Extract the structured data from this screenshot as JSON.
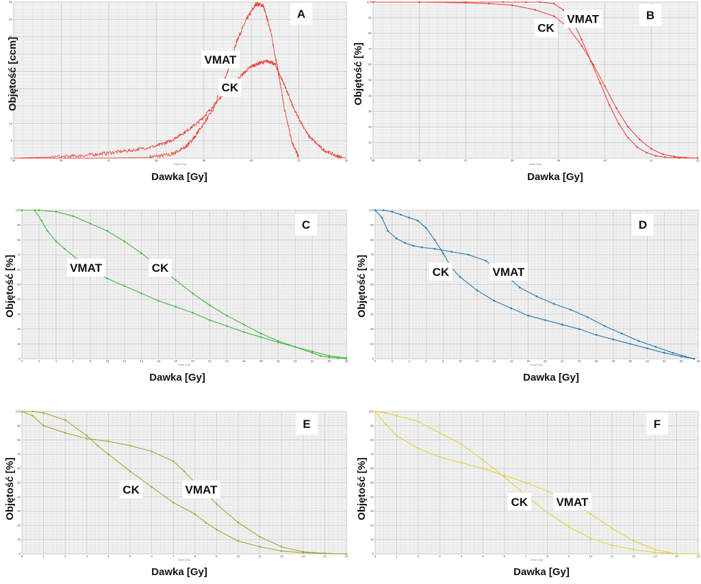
{
  "chart_data": [
    {
      "id": "A",
      "type": "line",
      "color": "#e8463c",
      "xlabel": "Dawka  [Gy]",
      "ylabel": "Objętość  [ccm]",
      "xlim": [
        35,
        42
      ],
      "ylim": [
        0,
        45
      ],
      "xticks": [
        "35",
        "36",
        "37",
        "38",
        "39",
        "40",
        "41",
        "42"
      ],
      "yticks": [
        "0",
        "5",
        "10",
        "15",
        "20",
        "25",
        "30",
        "35",
        "40",
        "45"
      ],
      "x_axis_caption": "Dose (Gy)",
      "series": [
        {
          "name": "VMAT",
          "noise": 0.6,
          "markers": false,
          "x": [
            35.0,
            36.5,
            37.0,
            37.8,
            38.3,
            38.6,
            38.8,
            39.2,
            39.5,
            39.7,
            39.9,
            40.1,
            40.25,
            40.4,
            40.55,
            40.7,
            40.85,
            41.0
          ],
          "y": [
            0,
            0,
            0,
            0.2,
            1,
            3,
            6,
            14,
            25,
            34,
            40,
            44.5,
            44,
            37,
            26,
            14,
            5,
            0
          ]
        },
        {
          "name": "CK",
          "noise": 0.5,
          "markers": false,
          "x": [
            35.0,
            36.0,
            36.5,
            37.0,
            37.5,
            38.0,
            38.3,
            38.6,
            38.9,
            39.2,
            39.5,
            39.8,
            40.0,
            40.2,
            40.35,
            40.5,
            40.7,
            40.9,
            41.2,
            41.5,
            41.8,
            42.0
          ],
          "y": [
            0,
            0.4,
            0.8,
            1.5,
            2.3,
            3.5,
            5,
            7.5,
            10.5,
            15,
            20,
            24,
            26.5,
            27.5,
            28,
            27,
            21,
            14,
            6.5,
            2.5,
            0.6,
            0
          ]
        }
      ],
      "labels": [
        {
          "text": "VMAT",
          "x": 39.35,
          "y": 28.4
        },
        {
          "text": "CK",
          "x": 39.55,
          "y": 20.4
        }
      ]
    },
    {
      "id": "B",
      "type": "line",
      "color": "#e8463c",
      "xlabel": "Dawka  [Gy]",
      "ylabel": "Objętość  [%]",
      "xlim": [
        35,
        42
      ],
      "ylim": [
        0,
        100
      ],
      "xticks": [
        "35",
        "36",
        "37",
        "38",
        "39",
        "40",
        "41",
        "42"
      ],
      "yticks": [
        "0",
        "10",
        "20",
        "30",
        "40",
        "50",
        "60",
        "70",
        "80",
        "90",
        "100"
      ],
      "x_axis_caption": "Dose (Gy)",
      "series": [
        {
          "name": "VMAT",
          "markers": true,
          "x": [
            35,
            36,
            37,
            37.8,
            38.3,
            38.6,
            38.9,
            39.1,
            39.3,
            39.5,
            39.7,
            39.9,
            40.1,
            40.3,
            40.5,
            40.7,
            40.9,
            41.1,
            41.3,
            41.6,
            42.0
          ],
          "y": [
            100,
            100,
            100,
            100,
            100,
            100,
            99,
            95,
            88,
            76,
            62,
            48,
            34,
            22,
            13,
            7,
            3.5,
            1.5,
            0.6,
            0.2,
            0
          ]
        },
        {
          "name": "CK",
          "markers": true,
          "x": [
            35,
            36,
            37,
            37.5,
            38,
            38.5,
            38.9,
            39.2,
            39.5,
            39.75,
            40,
            40.25,
            40.5,
            40.75,
            41,
            41.25,
            41.5,
            41.75,
            42
          ],
          "y": [
            100,
            100,
            99.5,
            99,
            98,
            95,
            91,
            84,
            72,
            60,
            46,
            32,
            20,
            12,
            6,
            2.5,
            1,
            0.3,
            0
          ]
        }
      ],
      "labels": [
        {
          "text": "CK",
          "x": 38.73,
          "y": 83.5
        },
        {
          "text": "VMAT",
          "x": 39.53,
          "y": 89.2
        }
      ]
    },
    {
      "id": "C",
      "type": "line",
      "color": "#3fb63c",
      "xlabel": "Dawka  [Gy]",
      "ylabel": "Objętość  [%]",
      "xlim": [
        0,
        38
      ],
      "ylim": [
        0,
        100
      ],
      "xticks": [
        "0",
        "2",
        "4",
        "6",
        "8",
        "10",
        "12",
        "14",
        "16",
        "18",
        "20",
        "22",
        "24",
        "26",
        "28",
        "30",
        "32",
        "34",
        "36",
        "38"
      ],
      "yticks": [
        "0",
        "10",
        "20",
        "30",
        "40",
        "50",
        "60",
        "70",
        "80",
        "90",
        "100"
      ],
      "x_axis_caption": "Dose (Gy)",
      "series": [
        {
          "name": "VMAT",
          "markers": true,
          "x": [
            0,
            1.5,
            2.3,
            3,
            4,
            5,
            6.5,
            8,
            10,
            12,
            14,
            16,
            18,
            20,
            22,
            24,
            26,
            28,
            30,
            32,
            34,
            36,
            38
          ],
          "y": [
            100,
            100,
            93,
            86,
            79,
            74,
            67,
            61,
            54,
            49,
            44,
            39,
            35,
            31,
            26,
            22,
            18,
            14.5,
            11,
            8,
            5,
            2,
            0.5
          ]
        },
        {
          "name": "CK",
          "markers": true,
          "x": [
            0,
            2,
            4,
            6,
            8,
            10,
            12,
            14,
            16,
            18,
            20,
            22,
            24,
            26,
            28,
            30,
            32,
            34,
            35,
            36,
            37,
            38
          ],
          "y": [
            100,
            100,
            99,
            96,
            91,
            86,
            79,
            71,
            62,
            53,
            44,
            36,
            29,
            23,
            17,
            12,
            8,
            4,
            2,
            1,
            0.5,
            0
          ]
        }
      ],
      "labels": [
        {
          "text": "VMAT",
          "x": 7.5,
          "y": 61.4
        },
        {
          "text": "CK",
          "x": 16.2,
          "y": 61.4
        }
      ]
    },
    {
      "id": "D",
      "type": "line",
      "color": "#1f78b4",
      "xlabel": "Dawka  [Gy]",
      "ylabel": "Objętość  [%]",
      "xlim": [
        0,
        38
      ],
      "ylim": [
        0,
        100
      ],
      "xticks": [
        "0",
        "2",
        "4",
        "6",
        "8",
        "10",
        "12",
        "14",
        "16",
        "18",
        "20",
        "22",
        "24",
        "26",
        "28",
        "30",
        "32",
        "34",
        "36",
        "38"
      ],
      "yticks": [
        "0",
        "10",
        "20",
        "30",
        "40",
        "50",
        "60",
        "70",
        "80",
        "90",
        "100"
      ],
      "x_axis_caption": "Dose (Gy)",
      "series": [
        {
          "name": "VMAT",
          "markers": true,
          "x": [
            0,
            0.8,
            1.5,
            2.5,
            3.5,
            4.5,
            5.5,
            7,
            9,
            11,
            13,
            15,
            17,
            19,
            21,
            23,
            25,
            27,
            29,
            31,
            33,
            35,
            36.5,
            37.5
          ],
          "y": [
            100,
            95,
            86,
            81,
            78,
            76,
            75,
            74,
            72,
            70,
            66,
            58,
            48,
            42,
            37,
            33,
            28,
            22,
            17,
            12,
            8,
            4,
            1.5,
            0
          ]
        },
        {
          "name": "CK",
          "markers": true,
          "x": [
            0,
            1,
            2,
            3,
            4,
            5,
            6,
            7,
            8,
            9,
            10,
            12,
            14,
            16,
            18,
            20,
            22,
            24,
            26,
            28,
            30,
            32,
            34,
            36,
            37.5
          ],
          "y": [
            100,
            100,
            99,
            97,
            95,
            93,
            88,
            80,
            71,
            61,
            55,
            46,
            39,
            34,
            29,
            26,
            23,
            20,
            16,
            13,
            10,
            7,
            4,
            1.5,
            0
          ]
        }
      ],
      "labels": [
        {
          "text": "CK",
          "x": 7.72,
          "y": 58.6
        },
        {
          "text": "VMAT",
          "x": 15.7,
          "y": 58.6
        }
      ]
    },
    {
      "id": "E",
      "type": "line",
      "color": "#a3a632",
      "xlabel": "Dawka  [Gy]",
      "ylabel": "Objętość  [%]",
      "xlim": [
        0,
        15
      ],
      "ylim": [
        0,
        100
      ],
      "xticks": [
        "0",
        "1",
        "2",
        "3",
        "4",
        "5",
        "6",
        "7",
        "8",
        "9",
        "10",
        "11",
        "12",
        "13",
        "14",
        "15"
      ],
      "yticks": [
        "0",
        "10",
        "20",
        "30",
        "40",
        "50",
        "60",
        "70",
        "80",
        "90",
        "100"
      ],
      "x_axis_caption": "Dose (Gy)",
      "series": [
        {
          "name": "VMAT",
          "markers": true,
          "x": [
            0,
            0.5,
            1,
            2,
            3,
            4,
            5,
            6,
            7,
            7.5,
            8,
            8.5,
            9,
            10,
            11,
            12,
            13,
            14,
            15
          ],
          "y": [
            100,
            97,
            90,
            85,
            81,
            79,
            76,
            72,
            65,
            58,
            50,
            43,
            35,
            22,
            12,
            5,
            1.5,
            0.4,
            0
          ]
        },
        {
          "name": "CK",
          "markers": true,
          "x": [
            0,
            0.5,
            1,
            2,
            3,
            3.5,
            4,
            5,
            6,
            7,
            8,
            8.5,
            9,
            10,
            11,
            12,
            13,
            14,
            15
          ],
          "y": [
            100,
            100,
            99,
            94,
            83,
            76,
            70,
            58,
            47,
            36,
            28,
            22,
            17,
            9,
            5,
            2,
            0.8,
            0.2,
            0
          ]
        }
      ],
      "labels": [
        {
          "text": "CK",
          "x": 5.05,
          "y": 45.3
        },
        {
          "text": "VMAT",
          "x": 8.29,
          "y": 45.3
        }
      ]
    },
    {
      "id": "F",
      "type": "line",
      "color": "#e3d23a",
      "xlabel": "Dawka  [Gy]",
      "ylabel": "Objętość  [%]",
      "xlim": [
        0,
        15
      ],
      "ylim": [
        0,
        100
      ],
      "xticks": [
        "0",
        "1",
        "2",
        "3",
        "4",
        "5",
        "6",
        "7",
        "8",
        "9",
        "10",
        "11",
        "12",
        "13",
        "14",
        "15"
      ],
      "yticks": [
        "0",
        "10",
        "20",
        "30",
        "40",
        "50",
        "60",
        "70",
        "80",
        "90",
        "100"
      ],
      "x_axis_caption": "Dose (Gy)",
      "series": [
        {
          "name": "VMAT",
          "markers": true,
          "x": [
            0,
            0.5,
            1,
            2,
            3,
            4,
            5,
            6,
            7,
            8,
            9,
            10,
            11,
            12,
            13,
            14
          ],
          "y": [
            100,
            91,
            83,
            74,
            68,
            64,
            60,
            55,
            50,
            44,
            37,
            28,
            18,
            9,
            3,
            0
          ]
        },
        {
          "name": "CK",
          "markers": true,
          "x": [
            0,
            0.5,
            1,
            2,
            3,
            4,
            5,
            6,
            7,
            8,
            9,
            10,
            11,
            12,
            13,
            14,
            15
          ],
          "y": [
            100,
            99,
            97,
            93,
            85,
            77,
            66,
            54,
            41,
            29,
            19,
            11,
            6,
            3,
            1,
            0.3,
            0
          ]
        }
      ],
      "labels": [
        {
          "text": "CK",
          "x": 6.7,
          "y": 36.5
        },
        {
          "text": "VMAT",
          "x": 9.15,
          "y": 36.5
        }
      ]
    }
  ]
}
